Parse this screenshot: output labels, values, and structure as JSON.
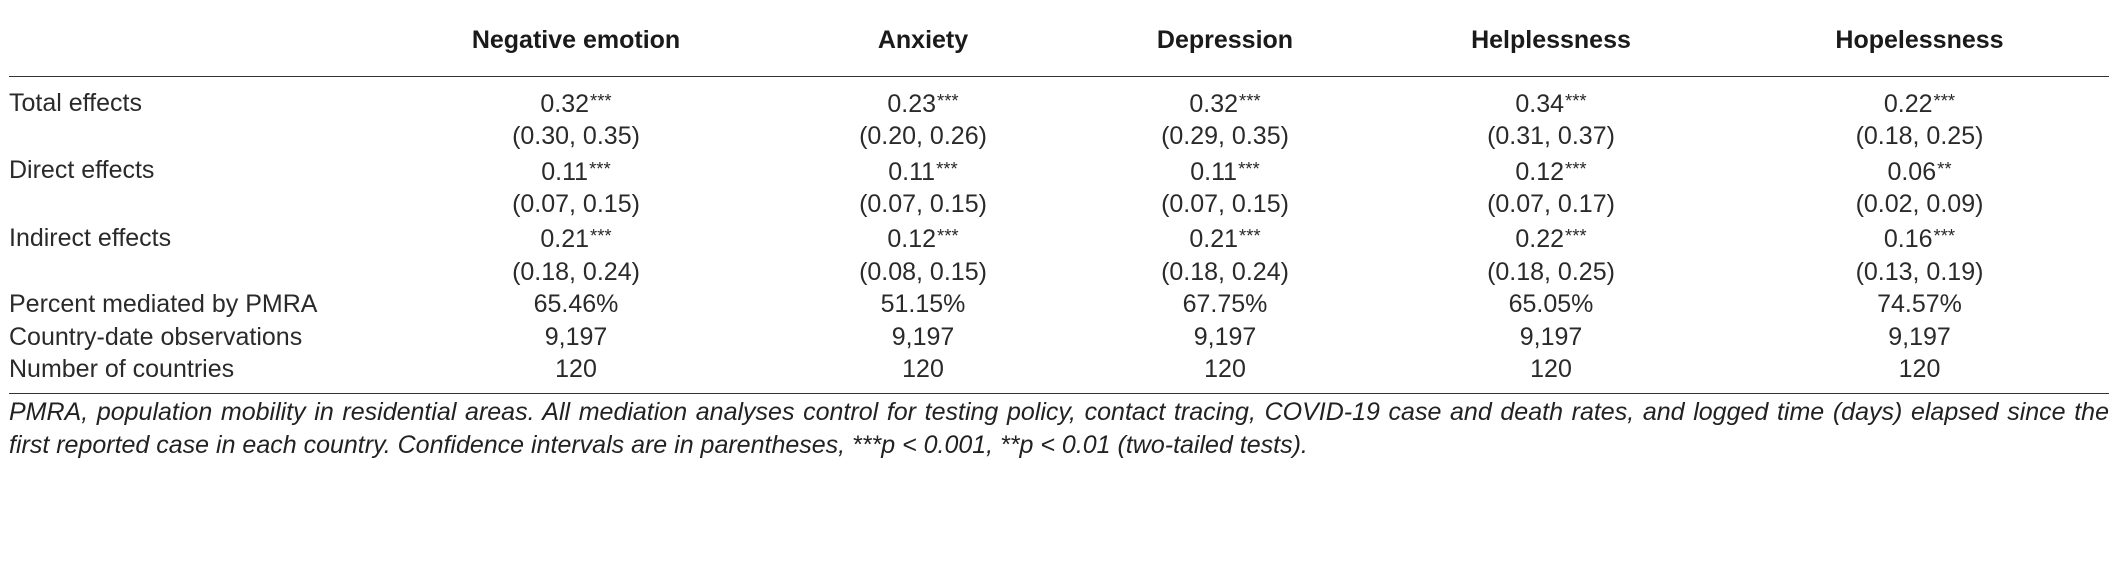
{
  "table": {
    "header": {
      "blank": "",
      "columns": [
        "Negative emotion",
        "Anxiety",
        "Depression",
        "Helplessness",
        "Hopelessness"
      ]
    },
    "rows": [
      {
        "label": "Total effects",
        "cells": [
          {
            "value": "0.32",
            "sig": "***"
          },
          {
            "value": "0.23",
            "sig": "***"
          },
          {
            "value": "0.32",
            "sig": "***"
          },
          {
            "value": "0.34",
            "sig": "***"
          },
          {
            "value": "0.22",
            "sig": "***"
          }
        ]
      },
      {
        "label": "",
        "cells": [
          {
            "value": "(0.30, 0.35)",
            "sig": ""
          },
          {
            "value": "(0.20, 0.26)",
            "sig": ""
          },
          {
            "value": "(0.29, 0.35)",
            "sig": ""
          },
          {
            "value": "(0.31, 0.37)",
            "sig": ""
          },
          {
            "value": "(0.18, 0.25)",
            "sig": ""
          }
        ]
      },
      {
        "label": "Direct effects",
        "cells": [
          {
            "value": "0.11",
            "sig": "***"
          },
          {
            "value": "0.11",
            "sig": "***"
          },
          {
            "value": "0.11",
            "sig": "***"
          },
          {
            "value": "0.12",
            "sig": "***"
          },
          {
            "value": "0.06",
            "sig": "**"
          }
        ]
      },
      {
        "label": "",
        "cells": [
          {
            "value": "(0.07, 0.15)",
            "sig": ""
          },
          {
            "value": "(0.07, 0.15)",
            "sig": ""
          },
          {
            "value": "(0.07, 0.15)",
            "sig": ""
          },
          {
            "value": "(0.07, 0.17)",
            "sig": ""
          },
          {
            "value": "(0.02, 0.09)",
            "sig": ""
          }
        ]
      },
      {
        "label": "Indirect effects",
        "cells": [
          {
            "value": "0.21",
            "sig": "***"
          },
          {
            "value": "0.12",
            "sig": "***"
          },
          {
            "value": "0.21",
            "sig": "***"
          },
          {
            "value": "0.22",
            "sig": "***"
          },
          {
            "value": "0.16",
            "sig": "***"
          }
        ]
      },
      {
        "label": "",
        "cells": [
          {
            "value": "(0.18, 0.24)",
            "sig": ""
          },
          {
            "value": "(0.08, 0.15)",
            "sig": ""
          },
          {
            "value": "(0.18, 0.24)",
            "sig": ""
          },
          {
            "value": "(0.18, 0.25)",
            "sig": ""
          },
          {
            "value": "(0.13, 0.19)",
            "sig": ""
          }
        ]
      },
      {
        "label": "Percent mediated by PMRA",
        "cells": [
          {
            "value": "65.46%",
            "sig": ""
          },
          {
            "value": "51.15%",
            "sig": ""
          },
          {
            "value": "67.75%",
            "sig": ""
          },
          {
            "value": "65.05%",
            "sig": ""
          },
          {
            "value": "74.57%",
            "sig": ""
          }
        ]
      },
      {
        "label": "Country-date observations",
        "cells": [
          {
            "value": "9,197",
            "sig": ""
          },
          {
            "value": "9,197",
            "sig": ""
          },
          {
            "value": "9,197",
            "sig": ""
          },
          {
            "value": "9,197",
            "sig": ""
          },
          {
            "value": "9,197",
            "sig": ""
          }
        ]
      },
      {
        "label": "Number of countries",
        "cells": [
          {
            "value": "120",
            "sig": ""
          },
          {
            "value": "120",
            "sig": ""
          },
          {
            "value": "120",
            "sig": ""
          },
          {
            "value": "120",
            "sig": ""
          },
          {
            "value": "120",
            "sig": ""
          }
        ]
      }
    ]
  },
  "footnote": "PMRA, population mobility in residential areas. All mediation analyses control for testing policy, contact tracing, COVID-19 case and death rates, and logged time (days) elapsed since the first reported case in each country. Confidence intervals are in parentheses, ***p < 0.001, **p < 0.01 (two-tailed tests)."
}
